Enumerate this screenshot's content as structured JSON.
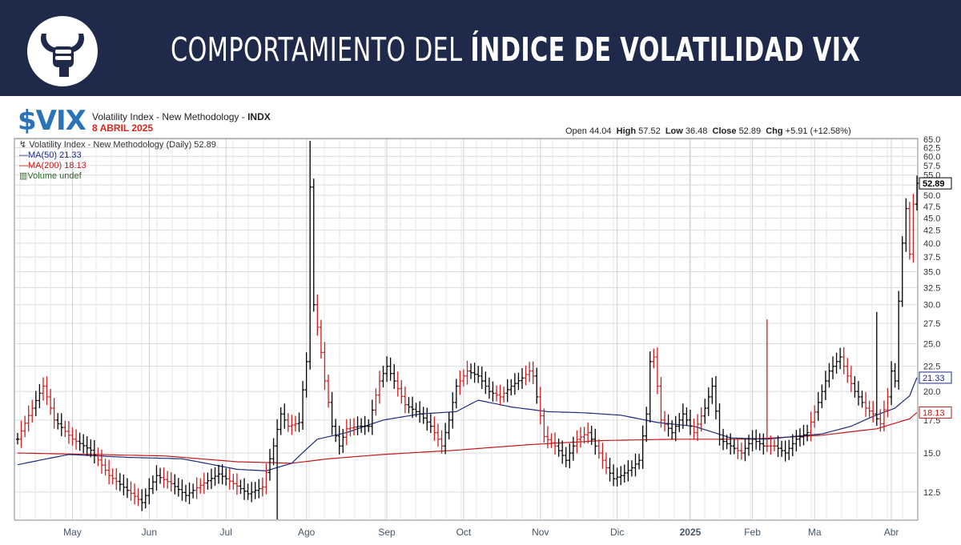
{
  "banner": {
    "title_light": "COMPORTAMIENTO DEL ",
    "title_bold": "ÍNDICE DE VOLATILIDAD VIX",
    "logo_icon": "bull-fist-logo-icon",
    "background": "#1f2a4b"
  },
  "header": {
    "symbol": "$VIX",
    "description": "Volatility Index - New Methodology - ",
    "exchange": "INDX",
    "date": "8 ABRIL 2025",
    "ohlc": {
      "open_label": "Open",
      "open": "44.04",
      "high_label": "High",
      "high": "57.52",
      "low_label": "Low",
      "low": "36.48",
      "close_label": "Close",
      "close": "52.89",
      "chg_label": "Chg",
      "chg": "+5.91 (+12.58%)"
    }
  },
  "legend": {
    "main": "Volatility Index - New Methodology (Daily) 52.89",
    "ma50": "MA(50) 21.33",
    "ma200": "MA(200) 18.13",
    "volume": "Volume undef"
  },
  "chart_data": {
    "type": "ohlc",
    "scale": "log",
    "ylim": [
      11.0,
      65.0
    ],
    "yticks": [
      "12.5",
      "15.0",
      "17.5",
      "20.0",
      "22.5",
      "25.0",
      "27.5",
      "30.0",
      "32.5",
      "35.0",
      "37.5",
      "40.0",
      "42.5",
      "45.0",
      "47.5",
      "50.0",
      "52.5",
      "55.0",
      "57.5",
      "60.0",
      "62.5",
      "65.0"
    ],
    "xticks": [
      "May",
      "Jun",
      "Jul",
      "Ago",
      "Sep",
      "Oct",
      "Nov",
      "Dic",
      "2025",
      "Feb",
      "Ma",
      "Abr"
    ],
    "last_value_labels": {
      "close": "52.89",
      "ma50": "21.33",
      "ma200": "18.13"
    },
    "colors": {
      "up": "#000000",
      "down": "#cc1f1f",
      "ma50": "#1c2a80",
      "ma200": "#c01818",
      "grid": "#dcdcdc"
    },
    "anchors": [
      [
        0,
        16.0
      ],
      [
        4,
        18.5
      ],
      [
        7,
        20.5
      ],
      [
        10,
        17.5
      ],
      [
        15,
        16.0
      ],
      [
        20,
        15.2
      ],
      [
        25,
        13.5
      ],
      [
        30,
        12.6
      ],
      [
        34,
        11.9
      ],
      [
        38,
        13.5
      ],
      [
        42,
        13.0
      ],
      [
        46,
        12.3
      ],
      [
        50,
        12.9
      ],
      [
        55,
        13.6
      ],
      [
        59,
        13.0
      ],
      [
        63,
        12.4
      ],
      [
        67,
        12.8
      ],
      [
        70,
        15.5
      ],
      [
        72,
        18.0
      ],
      [
        74,
        17.0
      ],
      [
        77,
        17.3
      ],
      [
        79,
        23.0
      ],
      [
        80,
        52.0
      ],
      [
        81,
        30.0
      ],
      [
        82,
        27.0
      ],
      [
        84,
        21.0
      ],
      [
        86,
        17.0
      ],
      [
        88,
        15.5
      ],
      [
        90,
        16.8
      ],
      [
        93,
        17.0
      ],
      [
        96,
        17.0
      ],
      [
        99,
        21.0
      ],
      [
        101,
        22.5
      ],
      [
        103,
        21.0
      ],
      [
        106,
        18.8
      ],
      [
        110,
        18.0
      ],
      [
        113,
        17.0
      ],
      [
        116,
        15.5
      ],
      [
        118,
        17.5
      ],
      [
        120,
        20.5
      ],
      [
        123,
        22.0
      ],
      [
        126,
        21.5
      ],
      [
        129,
        20.0
      ],
      [
        132,
        19.5
      ],
      [
        135,
        20.5
      ],
      [
        138,
        21.3
      ],
      [
        140,
        22.0
      ],
      [
        141,
        21.5
      ],
      [
        142,
        19.5
      ],
      [
        144,
        16.2
      ],
      [
        147,
        15.5
      ],
      [
        150,
        14.5
      ],
      [
        153,
        16.0
      ],
      [
        156,
        16.5
      ],
      [
        159,
        15.0
      ],
      [
        161,
        14.0
      ],
      [
        163,
        13.3
      ],
      [
        165,
        13.5
      ],
      [
        168,
        14.0
      ],
      [
        170,
        14.5
      ],
      [
        172,
        18.0
      ],
      [
        173,
        23.0
      ],
      [
        174,
        23.5
      ],
      [
        176,
        17.5
      ],
      [
        179,
        16.5
      ],
      [
        182,
        18.0
      ],
      [
        185,
        16.5
      ],
      [
        188,
        18.5
      ],
      [
        190,
        20.5
      ],
      [
        192,
        16.0
      ],
      [
        195,
        15.5
      ],
      [
        198,
        15.0
      ],
      [
        201,
        16.0
      ],
      [
        204,
        15.5
      ],
      [
        207,
        15.5
      ],
      [
        210,
        15.0
      ],
      [
        213,
        16.0
      ],
      [
        216,
        16.5
      ],
      [
        219,
        19.0
      ],
      [
        222,
        22.0
      ],
      [
        225,
        23.5
      ],
      [
        227,
        21.5
      ],
      [
        229,
        20.0
      ],
      [
        232,
        18.5
      ],
      [
        234,
        18.0
      ],
      [
        236,
        17.2
      ],
      [
        238,
        19.5
      ],
      [
        239,
        22.0
      ],
      [
        240,
        21.0
      ],
      [
        242,
        40.0
      ],
      [
        243,
        47.0
      ],
      [
        244,
        38.0
      ],
      [
        245,
        48.0
      ],
      [
        246,
        52.89
      ]
    ],
    "down_runs": [
      [
        1,
        4
      ],
      [
        7,
        10
      ],
      [
        13,
        16
      ],
      [
        22,
        27
      ],
      [
        31,
        33
      ],
      [
        40,
        42
      ],
      [
        49,
        51
      ],
      [
        58,
        60
      ],
      [
        67,
        68
      ],
      [
        74,
        76
      ],
      [
        82,
        85
      ],
      [
        90,
        92
      ],
      [
        98,
        99
      ],
      [
        104,
        106
      ],
      [
        114,
        116
      ],
      [
        121,
        123
      ],
      [
        131,
        133
      ],
      [
        139,
        141
      ],
      [
        143,
        147
      ],
      [
        153,
        156
      ],
      [
        159,
        161
      ],
      [
        174,
        177
      ],
      [
        185,
        187
      ],
      [
        197,
        198
      ],
      [
        205,
        207
      ],
      [
        217,
        218
      ],
      [
        226,
        228
      ],
      [
        232,
        234
      ],
      [
        236,
        238
      ],
      [
        244,
        245
      ]
    ],
    "spikes": {
      "80": 64.5,
      "205": 28.0,
      "235": 29.0
    },
    "low_outliers": {
      "71": 10.7
    },
    "ma50": [
      [
        0,
        14.2
      ],
      [
        14,
        14.9
      ],
      [
        30,
        14.7
      ],
      [
        45,
        14.6
      ],
      [
        60,
        13.9
      ],
      [
        68,
        13.8
      ],
      [
        75,
        14.3
      ],
      [
        82,
        16.0
      ],
      [
        90,
        16.5
      ],
      [
        100,
        17.5
      ],
      [
        110,
        18.0
      ],
      [
        120,
        18.2
      ],
      [
        126,
        19.2
      ],
      [
        135,
        18.6
      ],
      [
        145,
        18.2
      ],
      [
        155,
        18.1
      ],
      [
        165,
        17.9
      ],
      [
        175,
        17.3
      ],
      [
        185,
        17.0
      ],
      [
        195,
        16.1
      ],
      [
        205,
        16.0
      ],
      [
        212,
        16.2
      ],
      [
        220,
        16.4
      ],
      [
        228,
        17.0
      ],
      [
        234,
        17.8
      ],
      [
        240,
        18.5
      ],
      [
        244,
        19.6
      ],
      [
        246,
        21.33
      ]
    ],
    "ma200": [
      [
        0,
        15.0
      ],
      [
        20,
        14.9
      ],
      [
        40,
        14.8
      ],
      [
        60,
        14.4
      ],
      [
        75,
        14.3
      ],
      [
        85,
        14.6
      ],
      [
        100,
        14.9
      ],
      [
        120,
        15.2
      ],
      [
        140,
        15.6
      ],
      [
        160,
        15.9
      ],
      [
        180,
        16.0
      ],
      [
        200,
        16.0
      ],
      [
        220,
        16.3
      ],
      [
        235,
        16.8
      ],
      [
        244,
        17.6
      ],
      [
        246,
        18.13
      ]
    ]
  }
}
